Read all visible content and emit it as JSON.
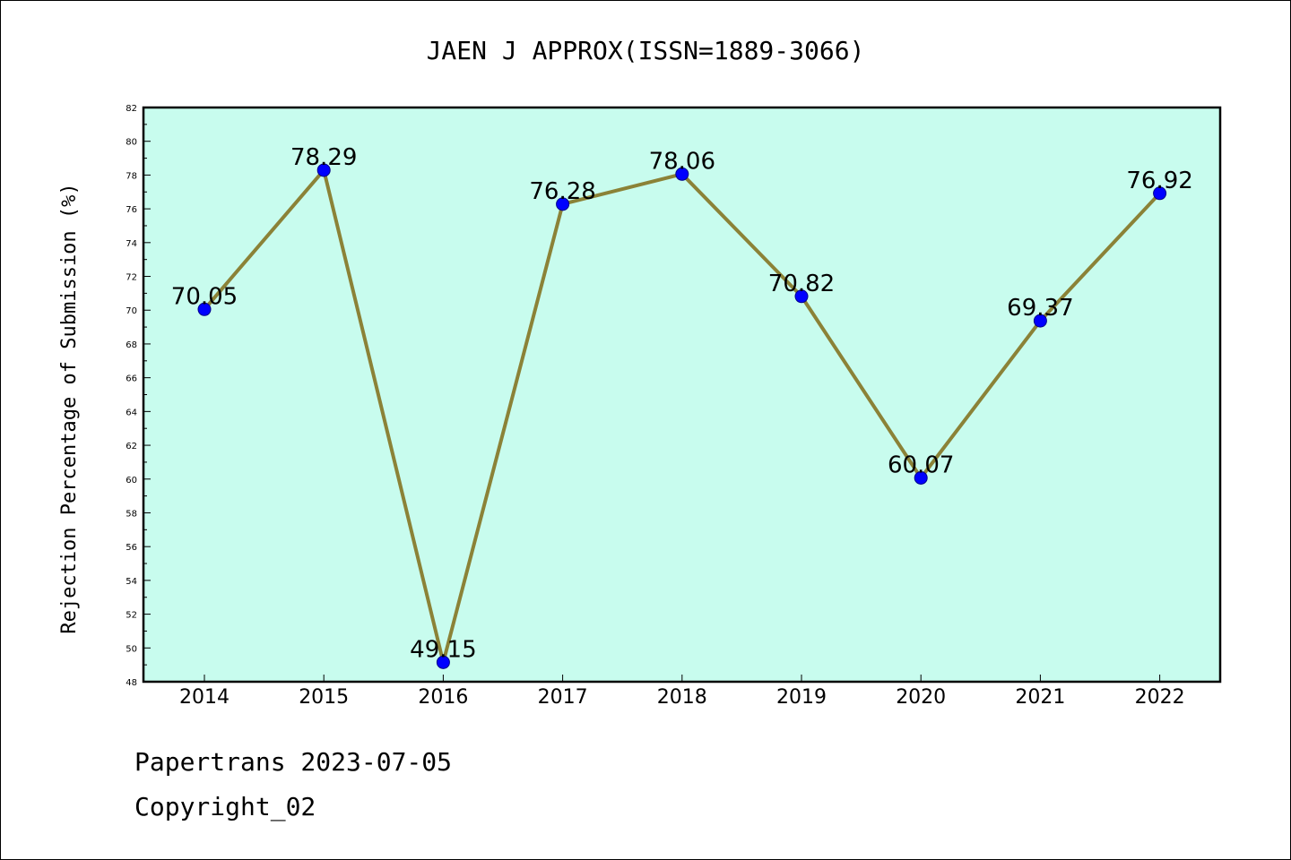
{
  "chart_data": {
    "type": "line",
    "title": "JAEN J APPROX(ISSN=1889-3066)",
    "xlabel": "",
    "ylabel": "Rejection Percentage of Submission (%)",
    "categories": [
      "2014",
      "2015",
      "2016",
      "2017",
      "2018",
      "2019",
      "2020",
      "2021",
      "2022"
    ],
    "series": [
      {
        "values": [
          70.05,
          78.29,
          49.15,
          76.28,
          78.06,
          70.82,
          60.07,
          69.37,
          76.92
        ],
        "labels": [
          "70.05",
          "78.29",
          "49.15",
          "76.28",
          "78.06",
          "70.82",
          "60.07",
          "69.37",
          "76.92"
        ]
      }
    ],
    "ylim": [
      48,
      82
    ],
    "yticks": [
      "48",
      "50",
      "52",
      "54",
      "56",
      "58",
      "60",
      "62",
      "64",
      "66",
      "68",
      "70",
      "72",
      "74",
      "76",
      "78",
      "80",
      "82"
    ],
    "grid": false,
    "legend": "none",
    "colors": {
      "plot_background": "#c8fcee",
      "line": "#8b8237",
      "marker": "#0000ff",
      "axis": "#000000"
    }
  },
  "footer": {
    "source": "Papertrans 2023-07-05",
    "copyright": "Copyright_02"
  }
}
